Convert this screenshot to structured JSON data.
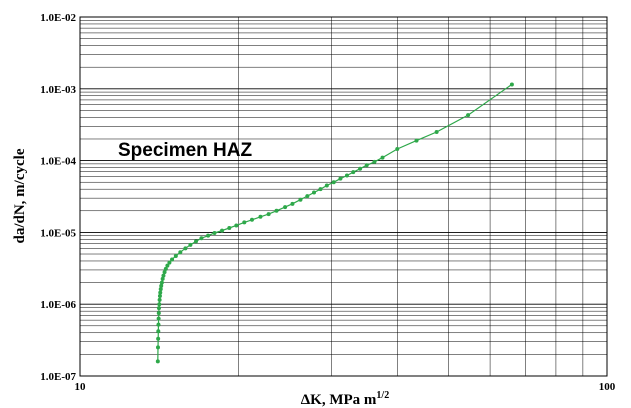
{
  "chart_data": {
    "type": "scatter",
    "title": "",
    "annotation": "Specimen HAZ",
    "xlabel_main": "ΔK, MPa m",
    "xlabel_sup": "1/2",
    "ylabel": "da/dN, m/cycle",
    "x_scale": "log",
    "y_scale": "log",
    "xlim": [
      10,
      100
    ],
    "ylim": [
      1e-07,
      0.01
    ],
    "grid": true,
    "legend": "none",
    "series_color": "#2ea84a",
    "x_tick_labels": [
      "10",
      "100"
    ],
    "y_tick_labels": [
      "1.0E-07",
      "1.0E-06",
      "1.0E-05",
      "1.0E-04",
      "1.0E-03",
      "1.0E-02"
    ],
    "series": [
      {
        "x": [
          14.05,
          14.06,
          14.07,
          14.08,
          14.09,
          14.1,
          14.11,
          14.12,
          14.14,
          14.16,
          14.18,
          14.2,
          14.23,
          14.26,
          14.3,
          14.35,
          14.4,
          14.47,
          14.55,
          14.65,
          14.78,
          14.95,
          15.2,
          15.5,
          15.85,
          16.2,
          16.6,
          17.0,
          17.5,
          18.0,
          18.6,
          19.2,
          19.8,
          20.5,
          21.2,
          22.0,
          22.8,
          23.6,
          24.5,
          25.3,
          26.2,
          27.0,
          27.8,
          28.6,
          29.4,
          30.3,
          31.2,
          32.1,
          33.0,
          34.0,
          35.0,
          36.2,
          37.5,
          40.0,
          43.5,
          47.5,
          54.5,
          66.0
        ],
        "y": [
          1.6e-07,
          2.5e-07,
          3.3e-07,
          4.2e-07,
          5.2e-07,
          6.3e-07,
          7.5e-07,
          8.8e-07,
          1e-06,
          1.15e-06,
          1.3e-06,
          1.45e-06,
          1.62e-06,
          1.8e-06,
          2e-06,
          2.25e-06,
          2.5e-06,
          2.8e-06,
          3.1e-06,
          3.45e-06,
          3.8e-06,
          4.2e-06,
          4.7e-06,
          5.3e-06,
          6e-06,
          6.7e-06,
          7.5e-06,
          8.3e-06,
          9e-06,
          9.8e-06,
          1.06e-05,
          1.15e-05,
          1.25e-05,
          1.38e-05,
          1.5e-05,
          1.65e-05,
          1.8e-05,
          2e-05,
          2.25e-05,
          2.5e-05,
          2.85e-05,
          3.2e-05,
          3.6e-05,
          4e-05,
          4.5e-05,
          5e-05,
          5.6e-05,
          6.2e-05,
          6.9e-05,
          7.7e-05,
          8.6e-05,
          9.6e-05,
          0.00011,
          0.000145,
          0.00019,
          0.00025,
          0.00043,
          0.00115
        ]
      }
    ]
  }
}
